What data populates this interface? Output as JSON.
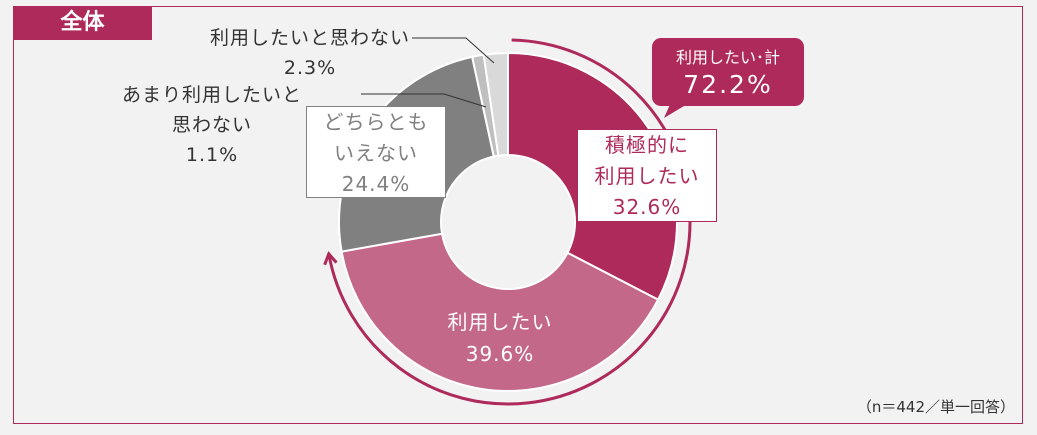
{
  "section_tag": "全体",
  "note": "（n＝442／単一回答）",
  "colors": {
    "accent": "#ae2a5a",
    "background": "#f2f2f2"
  },
  "chart_data": {
    "type": "pie",
    "donut": true,
    "direction": "clockwise from top",
    "slices": [
      {
        "label": "積極的に利用したい",
        "value": 32.6,
        "display": "32.6%",
        "color": "#ae2a5a"
      },
      {
        "label": "利用したい",
        "value": 39.6,
        "display": "39.6%",
        "color": "#c4688a"
      },
      {
        "label": "どちらともいえない",
        "value": 24.4,
        "display": "24.4%",
        "color": "#808080"
      },
      {
        "label": "あまり利用したいと思わない",
        "value": 1.1,
        "display": "1.1%",
        "color": "#bfbfbf"
      },
      {
        "label": "利用したいと思わない",
        "value": 2.3,
        "display": "2.3%",
        "color": "#d9d9d9"
      }
    ],
    "labels": {
      "s0_l1": "積極的に",
      "s0_l2": "利用したい",
      "s1_l1": "利用したい",
      "s2_l1": "どちらとも",
      "s2_l2": "いえない",
      "s3_l1": "あまり利用したいと",
      "s3_l2": "思わない",
      "s4_l1": "利用したいと思わない"
    },
    "total_callout": {
      "label": "利用したい･計",
      "value": 72.2,
      "display": "72.2%"
    }
  }
}
